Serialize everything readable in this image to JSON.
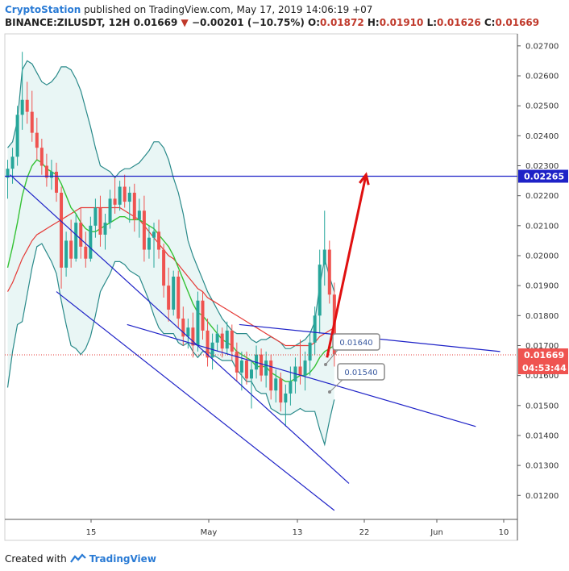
{
  "header": {
    "publisher": "CryptoStation",
    "published_text": "published on TradingView.com, May 17, 2019 14:06:19 +07",
    "symbol": "BINANCE:ZILUSDT, 12H",
    "last": "0.01669",
    "change_icon": "triangle-down-icon",
    "change": "−0.00201 (−10.75%)",
    "o_label": "O:",
    "o_value": "0.01872",
    "h_label": "H:",
    "h_value": "0.01910",
    "l_label": "L:",
    "l_value": "0.01626",
    "c_label": "C:",
    "c_value": "0.01669"
  },
  "footer": {
    "created_with": "Created with",
    "brand": "TradingView",
    "logo_icon": "tradingview-logo-icon"
  },
  "colors": {
    "up": "#26a69a",
    "down": "#ef5350",
    "bb_band": "#2a8a8a",
    "sma_fast": "#35c235",
    "sma_slow": "#e53935",
    "trend": "#1e22c7",
    "arrow": "#e01010",
    "level": "#1e22c7"
  },
  "chart_data": {
    "type": "candlestick",
    "ylim": [
      0.0112,
      0.0274
    ],
    "y_ticks": [
      "0.02700",
      "0.02600",
      "0.02500",
      "0.02400",
      "0.02300",
      "0.02200",
      "0.02100",
      "0.02000",
      "0.01900",
      "0.01800",
      "0.01700",
      "0.01600",
      "0.01500",
      "0.01400",
      "0.01300",
      "0.01200"
    ],
    "x_ticks": [
      "15",
      "May",
      "13",
      "22",
      "Jun",
      "10"
    ],
    "price_labels": [
      {
        "text": "0.02265",
        "value": 0.02265,
        "kind": "level"
      },
      {
        "text": "0.01669",
        "value": 0.01669,
        "kind": "last"
      },
      {
        "text": "04:53:44",
        "kind": "countdown"
      }
    ],
    "callouts": [
      "0.01640",
      "0.01540"
    ],
    "horizontal_level": 0.02265,
    "last_price": 0.01669,
    "candles": [
      {
        "o": 0.0226,
        "h": 0.0232,
        "l": 0.0219,
        "c": 0.0229
      },
      {
        "o": 0.0229,
        "h": 0.0236,
        "l": 0.0224,
        "c": 0.0233
      },
      {
        "o": 0.0233,
        "h": 0.025,
        "l": 0.023,
        "c": 0.0247
      },
      {
        "o": 0.0247,
        "h": 0.0268,
        "l": 0.0242,
        "c": 0.0252
      },
      {
        "o": 0.0252,
        "h": 0.0258,
        "l": 0.0244,
        "c": 0.0248
      },
      {
        "o": 0.0248,
        "h": 0.0255,
        "l": 0.0238,
        "c": 0.0241
      },
      {
        "o": 0.0241,
        "h": 0.0246,
        "l": 0.0232,
        "c": 0.0236
      },
      {
        "o": 0.0236,
        "h": 0.0239,
        "l": 0.0227,
        "c": 0.023
      },
      {
        "o": 0.023,
        "h": 0.0234,
        "l": 0.0223,
        "c": 0.0226
      },
      {
        "o": 0.0226,
        "h": 0.0232,
        "l": 0.0222,
        "c": 0.0228
      },
      {
        "o": 0.0228,
        "h": 0.0231,
        "l": 0.0218,
        "c": 0.0221
      },
      {
        "o": 0.0221,
        "h": 0.0223,
        "l": 0.0189,
        "c": 0.0196
      },
      {
        "o": 0.0196,
        "h": 0.0208,
        "l": 0.0193,
        "c": 0.0205
      },
      {
        "o": 0.0205,
        "h": 0.0212,
        "l": 0.0196,
        "c": 0.0199
      },
      {
        "o": 0.0199,
        "h": 0.0214,
        "l": 0.0198,
        "c": 0.0211
      },
      {
        "o": 0.0211,
        "h": 0.0216,
        "l": 0.0199,
        "c": 0.0203
      },
      {
        "o": 0.0203,
        "h": 0.0208,
        "l": 0.0196,
        "c": 0.0199
      },
      {
        "o": 0.0199,
        "h": 0.0213,
        "l": 0.0198,
        "c": 0.021
      },
      {
        "o": 0.021,
        "h": 0.0219,
        "l": 0.0206,
        "c": 0.0216
      },
      {
        "o": 0.0216,
        "h": 0.022,
        "l": 0.0203,
        "c": 0.0207
      },
      {
        "o": 0.0207,
        "h": 0.0214,
        "l": 0.0202,
        "c": 0.0211
      },
      {
        "o": 0.0211,
        "h": 0.0222,
        "l": 0.0209,
        "c": 0.0219
      },
      {
        "o": 0.0219,
        "h": 0.0226,
        "l": 0.0214,
        "c": 0.0217
      },
      {
        "o": 0.0217,
        "h": 0.0225,
        "l": 0.0215,
        "c": 0.0223
      },
      {
        "o": 0.0223,
        "h": 0.0227,
        "l": 0.0216,
        "c": 0.0218
      },
      {
        "o": 0.0218,
        "h": 0.0223,
        "l": 0.0211,
        "c": 0.0221
      },
      {
        "o": 0.0221,
        "h": 0.0224,
        "l": 0.0208,
        "c": 0.0212
      },
      {
        "o": 0.0212,
        "h": 0.0219,
        "l": 0.0206,
        "c": 0.0215
      },
      {
        "o": 0.0215,
        "h": 0.022,
        "l": 0.0198,
        "c": 0.0202
      },
      {
        "o": 0.0202,
        "h": 0.021,
        "l": 0.0199,
        "c": 0.0206
      },
      {
        "o": 0.0206,
        "h": 0.0211,
        "l": 0.0196,
        "c": 0.0208
      },
      {
        "o": 0.0208,
        "h": 0.0212,
        "l": 0.0199,
        "c": 0.0202
      },
      {
        "o": 0.0202,
        "h": 0.0204,
        "l": 0.0186,
        "c": 0.019
      },
      {
        "o": 0.019,
        "h": 0.0196,
        "l": 0.0178,
        "c": 0.0182
      },
      {
        "o": 0.0182,
        "h": 0.0195,
        "l": 0.018,
        "c": 0.0193
      },
      {
        "o": 0.0193,
        "h": 0.0195,
        "l": 0.0176,
        "c": 0.0179
      },
      {
        "o": 0.0179,
        "h": 0.0183,
        "l": 0.017,
        "c": 0.0173
      },
      {
        "o": 0.0173,
        "h": 0.0179,
        "l": 0.0169,
        "c": 0.0176
      },
      {
        "o": 0.0176,
        "h": 0.0181,
        "l": 0.0166,
        "c": 0.017
      },
      {
        "o": 0.017,
        "h": 0.0188,
        "l": 0.0168,
        "c": 0.0185
      },
      {
        "o": 0.0185,
        "h": 0.0188,
        "l": 0.0172,
        "c": 0.0175
      },
      {
        "o": 0.0175,
        "h": 0.0179,
        "l": 0.0163,
        "c": 0.0166
      },
      {
        "o": 0.0166,
        "h": 0.0174,
        "l": 0.0162,
        "c": 0.0171
      },
      {
        "o": 0.0171,
        "h": 0.0177,
        "l": 0.0168,
        "c": 0.0174
      },
      {
        "o": 0.0174,
        "h": 0.0176,
        "l": 0.0166,
        "c": 0.0169
      },
      {
        "o": 0.0169,
        "h": 0.0178,
        "l": 0.0167,
        "c": 0.0175
      },
      {
        "o": 0.0175,
        "h": 0.0177,
        "l": 0.0165,
        "c": 0.0168
      },
      {
        "o": 0.0168,
        "h": 0.0171,
        "l": 0.0158,
        "c": 0.0161
      },
      {
        "o": 0.0161,
        "h": 0.0168,
        "l": 0.0155,
        "c": 0.0165
      },
      {
        "o": 0.0165,
        "h": 0.0168,
        "l": 0.0157,
        "c": 0.0159
      },
      {
        "o": 0.0159,
        "h": 0.0165,
        "l": 0.0149,
        "c": 0.0162
      },
      {
        "o": 0.0162,
        "h": 0.017,
        "l": 0.0159,
        "c": 0.0167
      },
      {
        "o": 0.0167,
        "h": 0.0169,
        "l": 0.0158,
        "c": 0.016
      },
      {
        "o": 0.016,
        "h": 0.0168,
        "l": 0.0156,
        "c": 0.0165
      },
      {
        "o": 0.0165,
        "h": 0.0167,
        "l": 0.0152,
        "c": 0.0155
      },
      {
        "o": 0.0155,
        "h": 0.0162,
        "l": 0.0151,
        "c": 0.0159
      },
      {
        "o": 0.0159,
        "h": 0.0161,
        "l": 0.0148,
        "c": 0.0151
      },
      {
        "o": 0.0151,
        "h": 0.0157,
        "l": 0.0143,
        "c": 0.0154
      },
      {
        "o": 0.0154,
        "h": 0.0163,
        "l": 0.015,
        "c": 0.0158
      },
      {
        "o": 0.0158,
        "h": 0.0166,
        "l": 0.0154,
        "c": 0.0163
      },
      {
        "o": 0.0163,
        "h": 0.0172,
        "l": 0.0157,
        "c": 0.016
      },
      {
        "o": 0.016,
        "h": 0.0168,
        "l": 0.0155,
        "c": 0.0165
      },
      {
        "o": 0.0165,
        "h": 0.0174,
        "l": 0.016,
        "c": 0.0171
      },
      {
        "o": 0.0171,
        "h": 0.0183,
        "l": 0.0167,
        "c": 0.018
      },
      {
        "o": 0.018,
        "h": 0.0202,
        "l": 0.0174,
        "c": 0.0197
      },
      {
        "o": 0.0197,
        "h": 0.0215,
        "l": 0.019,
        "c": 0.0202
      },
      {
        "o": 0.0202,
        "h": 0.0205,
        "l": 0.0184,
        "c": 0.0187
      },
      {
        "o": 0.0187,
        "h": 0.0191,
        "l": 0.0163,
        "c": 0.0167
      }
    ],
    "bollinger": {
      "upper": [
        0.0236,
        0.0238,
        0.0245,
        0.0262,
        0.0265,
        0.0264,
        0.0261,
        0.0258,
        0.0257,
        0.0258,
        0.026,
        0.0263,
        0.0263,
        0.0262,
        0.0259,
        0.0255,
        0.0249,
        0.0243,
        0.0236,
        0.023,
        0.0229,
        0.0228,
        0.0226,
        0.0228,
        0.0229,
        0.0229,
        0.023,
        0.0231,
        0.0233,
        0.0235,
        0.0238,
        0.0238,
        0.0236,
        0.0232,
        0.0226,
        0.0221,
        0.0214,
        0.0205,
        0.02,
        0.0196,
        0.0192,
        0.0188,
        0.0185,
        0.0182,
        0.0179,
        0.0177,
        0.0175,
        0.0174,
        0.0174,
        0.0174,
        0.0172,
        0.0171,
        0.0172,
        0.0172,
        0.0173,
        0.0172,
        0.0171,
        0.0169,
        0.0169,
        0.017,
        0.0171,
        0.0172,
        0.0174,
        0.0178,
        0.019,
        0.0199,
        0.0193,
        0.0188
      ],
      "mid": [
        0.0196,
        0.0203,
        0.0211,
        0.022,
        0.0226,
        0.023,
        0.0232,
        0.0231,
        0.0229,
        0.0228,
        0.0227,
        0.0224,
        0.022,
        0.0216,
        0.0214,
        0.0211,
        0.0209,
        0.0208,
        0.0208,
        0.0209,
        0.021,
        0.0211,
        0.0212,
        0.0213,
        0.0213,
        0.0212,
        0.0212,
        0.0212,
        0.0211,
        0.021,
        0.0209,
        0.0207,
        0.0205,
        0.0203,
        0.02,
        0.0196,
        0.0192,
        0.0188,
        0.0184,
        0.0181,
        0.018,
        0.0178,
        0.0176,
        0.0174,
        0.0172,
        0.0171,
        0.017,
        0.0168,
        0.0167,
        0.0166,
        0.0165,
        0.0163,
        0.0163,
        0.0163,
        0.0161,
        0.016,
        0.0159,
        0.0158,
        0.0158,
        0.0159,
        0.016,
        0.016,
        0.0161,
        0.0163,
        0.0166,
        0.0168,
        0.0169,
        0.017
      ],
      "lower": [
        0.0156,
        0.0168,
        0.0177,
        0.0178,
        0.0187,
        0.0196,
        0.0203,
        0.0204,
        0.0201,
        0.0198,
        0.0194,
        0.0185,
        0.0177,
        0.017,
        0.0169,
        0.0167,
        0.0169,
        0.0173,
        0.018,
        0.0188,
        0.0191,
        0.0194,
        0.0198,
        0.0198,
        0.0197,
        0.0195,
        0.0194,
        0.0193,
        0.0189,
        0.0185,
        0.018,
        0.0176,
        0.0174,
        0.0174,
        0.0174,
        0.0171,
        0.017,
        0.0171,
        0.0168,
        0.0166,
        0.0168,
        0.0168,
        0.0167,
        0.0166,
        0.0165,
        0.0165,
        0.0165,
        0.0162,
        0.016,
        0.0158,
        0.0158,
        0.0155,
        0.0154,
        0.0154,
        0.0149,
        0.0148,
        0.0147,
        0.0147,
        0.0147,
        0.0148,
        0.0149,
        0.0148,
        0.0148,
        0.0148,
        0.0142,
        0.0137,
        0.0145,
        0.0152
      ]
    },
    "sma_slow": [
      0.0188,
      0.0191,
      0.0195,
      0.0199,
      0.0202,
      0.0205,
      0.0207,
      0.0208,
      0.0209,
      0.021,
      0.0211,
      0.0212,
      0.0213,
      0.0214,
      0.0215,
      0.0216,
      0.0216,
      0.0216,
      0.0216,
      0.0216,
      0.0216,
      0.0216,
      0.0216,
      0.0216,
      0.0215,
      0.0214,
      0.0213,
      0.0212,
      0.021,
      0.0208,
      0.0206,
      0.0204,
      0.0202,
      0.02,
      0.0199,
      0.0197,
      0.0195,
      0.0193,
      0.0191,
      0.0189,
      0.0188,
      0.0186,
      0.0185,
      0.0184,
      0.0183,
      0.0182,
      0.0181,
      0.018,
      0.0179,
      0.0178,
      0.0177,
      0.0176,
      0.0175,
      0.0174,
      0.0173,
      0.0172,
      0.0171,
      0.017,
      0.017,
      0.017,
      0.017,
      0.017,
      0.017,
      0.0171,
      0.0173,
      0.0174,
      0.0175,
      0.0176
    ]
  },
  "annotations": {
    "trendlines": [
      {
        "from": [
          0.5,
          0.0227
        ],
        "to": [
          70,
          0.0124
        ]
      },
      {
        "from": [
          10.0,
          0.0188
        ],
        "to": [
          67,
          0.0115
        ]
      },
      {
        "from": [
          24.5,
          0.0177
        ],
        "to": [
          96,
          0.0143
        ]
      },
      {
        "from": [
          47.5,
          0.0177
        ],
        "to": [
          101,
          0.0168
        ]
      }
    ],
    "arrow": {
      "from": [
        65.5,
        0.0166
      ],
      "to": [
        73.5,
        0.0227
      ]
    }
  }
}
